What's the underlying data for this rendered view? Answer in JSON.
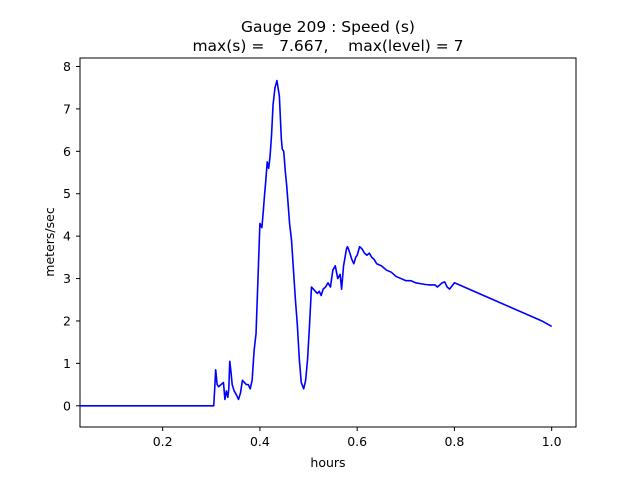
{
  "chart_data": {
    "type": "line",
    "title": "Gauge 209 : Speed (s)",
    "subtitle": "max(s) =   7.667,    max(level) = 7",
    "xlabel": "hours",
    "ylabel": "meters/sec",
    "xlim": [
      0.03,
      1.05
    ],
    "ylim": [
      -0.5,
      8.2
    ],
    "xticks": [
      0.2,
      0.4,
      0.6,
      0.8,
      1.0
    ],
    "xtick_labels": [
      "0.2",
      "0.4",
      "0.6",
      "0.8",
      "1.0"
    ],
    "yticks": [
      0,
      1,
      2,
      3,
      4,
      5,
      6,
      7,
      8
    ],
    "ytick_labels": [
      "0",
      "1",
      "2",
      "3",
      "4",
      "5",
      "6",
      "7",
      "8"
    ],
    "grid": false,
    "series": [
      {
        "color": "#0000ff",
        "x": [
          0.03,
          0.1,
          0.2,
          0.25,
          0.305,
          0.307,
          0.309,
          0.312,
          0.315,
          0.32,
          0.325,
          0.328,
          0.331,
          0.334,
          0.336,
          0.338,
          0.34,
          0.343,
          0.347,
          0.352,
          0.356,
          0.36,
          0.364,
          0.368,
          0.372,
          0.376,
          0.38,
          0.384,
          0.388,
          0.392,
          0.396,
          0.4,
          0.404,
          0.407,
          0.409,
          0.412,
          0.415,
          0.418,
          0.421,
          0.424,
          0.427,
          0.431,
          0.435,
          0.44,
          0.444,
          0.446,
          0.449,
          0.452,
          0.455,
          0.458,
          0.461,
          0.465,
          0.469,
          0.473,
          0.477,
          0.481,
          0.485,
          0.49,
          0.494,
          0.498,
          0.502,
          0.506,
          0.51,
          0.514,
          0.518,
          0.522,
          0.526,
          0.53,
          0.535,
          0.54,
          0.545,
          0.55,
          0.555,
          0.56,
          0.565,
          0.568,
          0.572,
          0.575,
          0.578,
          0.58,
          0.582,
          0.585,
          0.589,
          0.593,
          0.597,
          0.6,
          0.605,
          0.61,
          0.615,
          0.62,
          0.625,
          0.63,
          0.635,
          0.64,
          0.65,
          0.66,
          0.67,
          0.68,
          0.69,
          0.7,
          0.71,
          0.72,
          0.73,
          0.74,
          0.75,
          0.76,
          0.765,
          0.77,
          0.775,
          0.78,
          0.785,
          0.79,
          0.8,
          0.81,
          0.82,
          0.83,
          0.84,
          0.85,
          0.86,
          0.88,
          0.9,
          0.92,
          0.94,
          0.96,
          0.98,
          1.0
        ],
        "y": [
          0.0,
          0.0,
          0.0,
          0.0,
          0.0,
          0.4,
          0.85,
          0.5,
          0.45,
          0.5,
          0.55,
          0.15,
          0.35,
          0.2,
          0.4,
          1.05,
          0.85,
          0.5,
          0.35,
          0.25,
          0.15,
          0.3,
          0.6,
          0.55,
          0.5,
          0.5,
          0.4,
          0.6,
          1.3,
          1.7,
          3.0,
          4.3,
          4.2,
          4.6,
          4.9,
          5.3,
          5.75,
          5.6,
          5.9,
          6.4,
          7.1,
          7.5,
          7.667,
          7.3,
          6.3,
          6.05,
          6.0,
          5.55,
          5.2,
          4.75,
          4.3,
          3.9,
          3.2,
          2.5,
          1.9,
          1.1,
          0.55,
          0.4,
          0.6,
          1.1,
          1.9,
          2.8,
          2.75,
          2.7,
          2.65,
          2.7,
          2.6,
          2.75,
          2.8,
          2.9,
          2.8,
          3.2,
          3.3,
          3.0,
          3.1,
          2.75,
          3.3,
          3.5,
          3.7,
          3.75,
          3.7,
          3.6,
          3.45,
          3.35,
          3.5,
          3.55,
          3.75,
          3.7,
          3.6,
          3.55,
          3.6,
          3.5,
          3.45,
          3.35,
          3.3,
          3.2,
          3.15,
          3.05,
          3.0,
          2.95,
          2.95,
          2.9,
          2.88,
          2.86,
          2.85,
          2.85,
          2.8,
          2.85,
          2.9,
          2.92,
          2.8,
          2.75,
          2.9,
          2.85,
          2.8,
          2.75,
          2.7,
          2.65,
          2.6,
          2.5,
          2.4,
          2.3,
          2.2,
          2.1,
          2.0,
          1.87
        ]
      }
    ]
  }
}
